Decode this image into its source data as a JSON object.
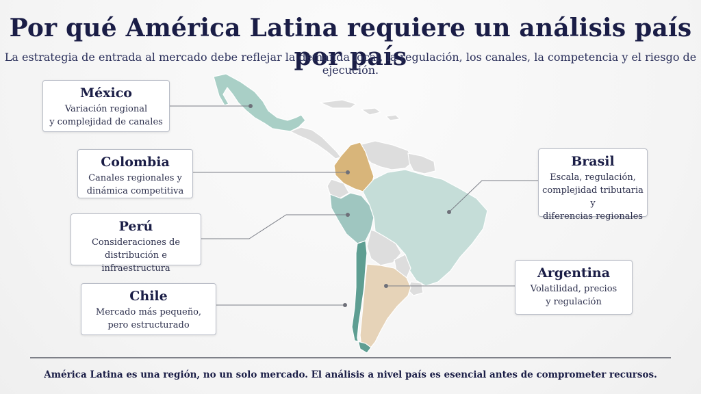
{
  "header": {
    "title": "Por qué América Latina requiere un análisis país por país",
    "subtitle": "La estrategia de entrada al mercado debe reflejar la demanda local, la regulación, los canales, la competencia y el riesgo de ejecución."
  },
  "countries": [
    {
      "key": "mexico",
      "name": "México",
      "line1": "Variación regional",
      "line2": "y complejidad de canales",
      "line3": ""
    },
    {
      "key": "colombia",
      "name": "Colombia",
      "line1": "Canales regionales y",
      "line2": "dinámica competitiva",
      "line3": ""
    },
    {
      "key": "peru",
      "name": "Perú",
      "line1": "Consideraciones de",
      "line2": "distribución e infraestructura",
      "line3": ""
    },
    {
      "key": "chile",
      "name": "Chile",
      "line1": "Mercado más pequeño,",
      "line2": "pero estructurado",
      "line3": ""
    },
    {
      "key": "brasil",
      "name": "Brasil",
      "line1": "Escala, regulación,",
      "line2": "complejidad tributaria y",
      "line3": "diferencias regionales"
    },
    {
      "key": "argentina",
      "name": "Argentina",
      "line1": "Volatilidad, precios",
      "line2": "y regulación",
      "line3": ""
    }
  ],
  "colors": {
    "mexico": "#a9cfc6",
    "colombia": "#d8b57a",
    "peru": "#9fc6c0",
    "chile": "#5e9e92",
    "brasil": "#c5ddd8",
    "argentina": "#e6d3b8",
    "other": "#dddddd"
  },
  "footer": {
    "text": "América Latina es una región, no un solo mercado. El análisis a nivel país es esencial antes de comprometer recursos."
  }
}
